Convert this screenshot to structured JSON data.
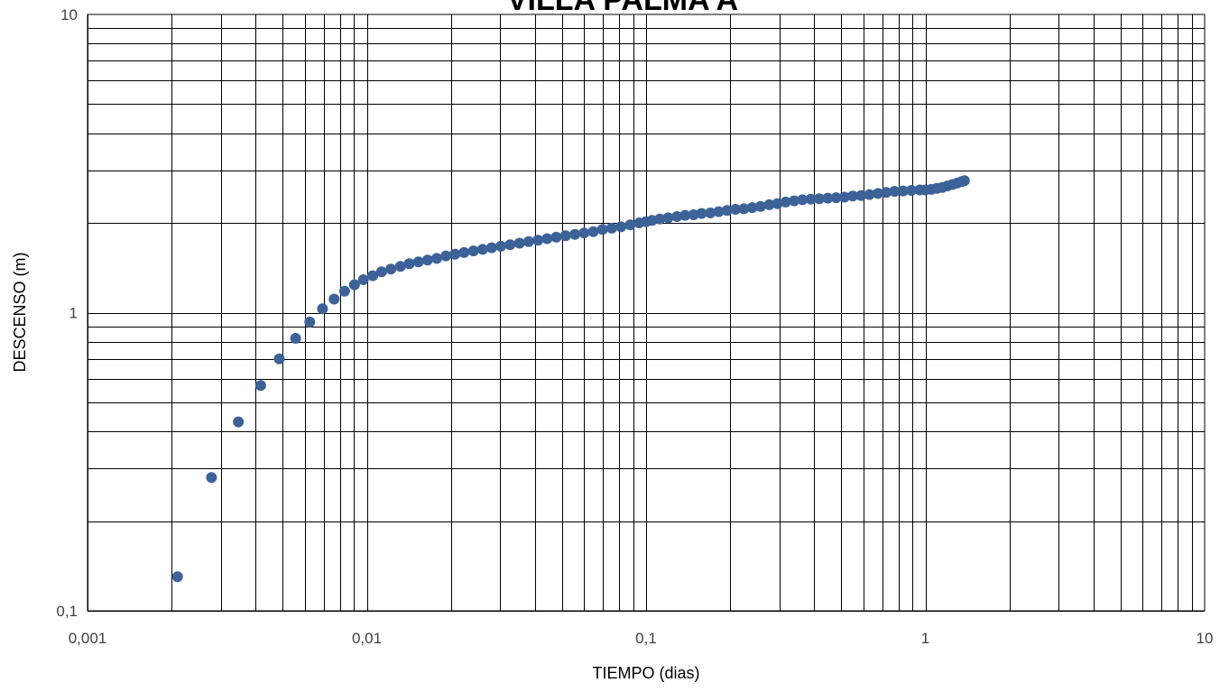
{
  "chart_data": {
    "type": "scatter",
    "title": "VILLA PALMA A",
    "xlabel": "TIEMPO (dias)",
    "ylabel": "DESCENSO (m)",
    "x_scale": "log",
    "y_scale": "log",
    "xlim": [
      0.001,
      10
    ],
    "ylim": [
      0.1,
      10
    ],
    "x_tick_labels": [
      "0,001",
      "0,01",
      "0,1",
      "1",
      "10"
    ],
    "y_tick_labels": [
      "0,1",
      "1",
      "10"
    ],
    "grid": "major and minor",
    "legend": "none",
    "marker_color": "#3D6298",
    "series": [
      {
        "x": [
          0.0021,
          0.00278,
          0.00347,
          0.00417,
          0.00486,
          0.00556,
          0.00625,
          0.00694,
          0.00764,
          0.00833,
          0.00903,
          0.00972,
          0.0105,
          0.0113,
          0.0122,
          0.0132,
          0.0142,
          0.0153,
          0.0165,
          0.0178,
          0.0192,
          0.0207,
          0.0223,
          0.0241,
          0.026,
          0.028,
          0.0302,
          0.0326,
          0.0352,
          0.038,
          0.041,
          0.0442,
          0.0477,
          0.0515,
          0.0556,
          0.06,
          0.0647,
          0.0698,
          0.0753,
          0.0813,
          0.0877,
          0.0946,
          0.1,
          0.105,
          0.112,
          0.12,
          0.129,
          0.138,
          0.148,
          0.158,
          0.17,
          0.182,
          0.195,
          0.209,
          0.224,
          0.24,
          0.257,
          0.276,
          0.295,
          0.316,
          0.339,
          0.363,
          0.389,
          0.417,
          0.447,
          0.479,
          0.513,
          0.55,
          0.589,
          0.631,
          0.676,
          0.724,
          0.776,
          0.832,
          0.891,
          0.955,
          1.0,
          1.05,
          1.1,
          1.15,
          1.2,
          1.25,
          1.3,
          1.35,
          1.38
        ],
        "y": [
          0.13,
          0.28,
          0.43,
          0.57,
          0.7,
          0.82,
          0.93,
          1.03,
          1.11,
          1.18,
          1.24,
          1.29,
          1.33,
          1.37,
          1.4,
          1.43,
          1.46,
          1.48,
          1.5,
          1.52,
          1.55,
          1.57,
          1.59,
          1.61,
          1.63,
          1.65,
          1.67,
          1.69,
          1.71,
          1.73,
          1.75,
          1.77,
          1.79,
          1.81,
          1.83,
          1.85,
          1.87,
          1.9,
          1.92,
          1.94,
          1.97,
          2.0,
          2.02,
          2.04,
          2.06,
          2.08,
          2.1,
          2.12,
          2.13,
          2.15,
          2.16,
          2.18,
          2.2,
          2.22,
          2.23,
          2.25,
          2.27,
          2.3,
          2.32,
          2.35,
          2.37,
          2.39,
          2.4,
          2.41,
          2.42,
          2.43,
          2.44,
          2.46,
          2.47,
          2.49,
          2.51,
          2.53,
          2.55,
          2.56,
          2.57,
          2.58,
          2.58,
          2.59,
          2.61,
          2.63,
          2.66,
          2.69,
          2.72,
          2.75,
          2.77
        ]
      }
    ]
  }
}
